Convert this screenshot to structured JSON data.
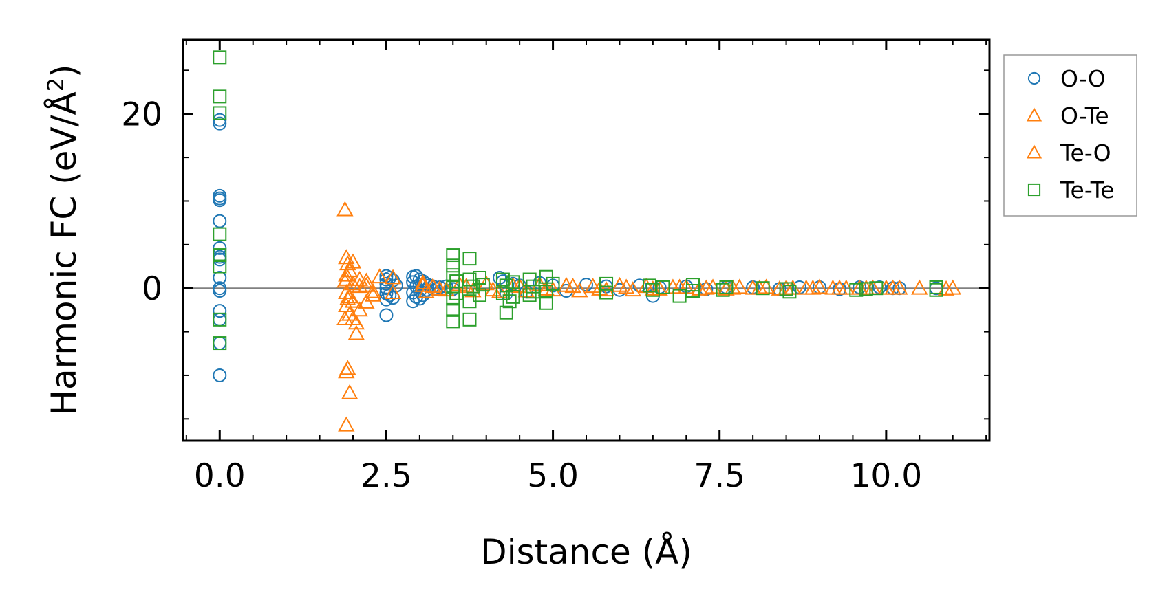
{
  "chart_data": {
    "type": "scatter",
    "title": "",
    "xlabel": "Distance (Å)",
    "ylabel": "Harmonic FC (eV/Å",
    "ylabel_superscript": "2",
    "ylabel_close": ")",
    "xlim": [
      -0.55,
      11.55
    ],
    "ylim": [
      -17.5,
      28.5
    ],
    "xticks": [
      0.0,
      2.5,
      5.0,
      7.5,
      10.0
    ],
    "xtick_labels": [
      "0.0",
      "2.5",
      "5.0",
      "7.5",
      "10.0"
    ],
    "yticks": [
      0,
      20
    ],
    "ytick_labels": [
      "0",
      "20"
    ],
    "x_minor_step": 0.5,
    "y_minor_step": 5,
    "zero_line": true,
    "legend_position": "outside-right-top",
    "series": [
      {
        "name": "O-O",
        "marker": "circle",
        "color": "#1f77b4",
        "points": [
          [
            0,
            19.3
          ],
          [
            0,
            18.9
          ],
          [
            0,
            10.6
          ],
          [
            0,
            10.3
          ],
          [
            0,
            10.1
          ],
          [
            0,
            7.7
          ],
          [
            0,
            4.6
          ],
          [
            0,
            3.6
          ],
          [
            0,
            3.3
          ],
          [
            0,
            1.2
          ],
          [
            0,
            0
          ],
          [
            0,
            -0.3
          ],
          [
            0,
            -2.6
          ],
          [
            0,
            -3.6
          ],
          [
            0,
            -6.3
          ],
          [
            0,
            -10
          ],
          [
            2.5,
            1.4
          ],
          [
            2.5,
            1.0
          ],
          [
            2.5,
            0.5
          ],
          [
            2.5,
            0
          ],
          [
            2.5,
            -0.6
          ],
          [
            2.5,
            -1.3
          ],
          [
            2.5,
            -3.1
          ],
          [
            2.55,
            1.2
          ],
          [
            2.55,
            -0.8
          ],
          [
            2.6,
            0.9
          ],
          [
            2.6,
            -1.1
          ],
          [
            2.65,
            0.3
          ],
          [
            2.9,
            1.3
          ],
          [
            2.9,
            0.7
          ],
          [
            2.9,
            -0.5
          ],
          [
            2.9,
            -1.5
          ],
          [
            2.95,
            1.4
          ],
          [
            2.95,
            0.2
          ],
          [
            2.95,
            -1.0
          ],
          [
            3.0,
            1.0
          ],
          [
            3.0,
            0.4
          ],
          [
            3.0,
            -0.3
          ],
          [
            3.0,
            -1.2
          ],
          [
            3.05,
            0.8
          ],
          [
            3.05,
            -0.8
          ],
          [
            3.1,
            0.5
          ],
          [
            3.1,
            -0.2
          ],
          [
            3.15,
            0.3
          ],
          [
            3.2,
            0.2
          ],
          [
            3.25,
            -0.1
          ],
          [
            3.3,
            0.1
          ],
          [
            3.4,
            0.2
          ],
          [
            3.5,
            -0.1
          ],
          [
            4.2,
            1.2
          ],
          [
            4.25,
            0.8
          ],
          [
            4.3,
            -0.6
          ],
          [
            4.4,
            0.5
          ],
          [
            4.5,
            0.3
          ],
          [
            4.6,
            -0.4
          ],
          [
            4.8,
            0.6
          ],
          [
            5.0,
            0.3
          ],
          [
            5.2,
            -0.3
          ],
          [
            5.5,
            0.4
          ],
          [
            5.8,
            0.2
          ],
          [
            6.0,
            -0.2
          ],
          [
            6.3,
            0.3
          ],
          [
            6.5,
            -0.9
          ],
          [
            6.6,
            0.1
          ],
          [
            7.0,
            0.2
          ],
          [
            7.3,
            -0.1
          ],
          [
            7.6,
            0.1
          ],
          [
            8.0,
            0.1
          ],
          [
            8.4,
            -0.1
          ],
          [
            8.7,
            0.1
          ],
          [
            9.0,
            0.1
          ],
          [
            9.3,
            -0.1
          ],
          [
            9.6,
            0.1
          ],
          [
            9.9,
            0.1
          ],
          [
            10.1,
            0
          ],
          [
            10.2,
            0
          ],
          [
            10.75,
            0
          ]
        ]
      },
      {
        "name": "O-Te",
        "marker": "triangle",
        "color": "#ff7f0e",
        "points": [
          [
            1.88,
            9.0
          ],
          [
            1.9,
            3.5
          ],
          [
            1.92,
            2.8
          ],
          [
            1.9,
            1.5
          ],
          [
            1.88,
            0.8
          ],
          [
            1.9,
            -0.5
          ],
          [
            1.92,
            -1.2
          ],
          [
            1.9,
            -2.0
          ],
          [
            1.88,
            -3.5
          ],
          [
            1.92,
            -9.2
          ],
          [
            1.9,
            -9.6
          ],
          [
            1.9,
            -15.7
          ],
          [
            1.95,
            -12.0
          ],
          [
            1.95,
            -3.0
          ],
          [
            1.95,
            2.0
          ],
          [
            2.0,
            0.5
          ],
          [
            2.0,
            -1.5
          ],
          [
            2.05,
            -5.2
          ],
          [
            2.05,
            -4.0
          ],
          [
            2.1,
            1.0
          ],
          [
            2.1,
            -2.5
          ],
          [
            2.2,
            0.3
          ],
          [
            2.3,
            -0.8
          ],
          [
            2.2,
            -1.6
          ],
          [
            2.4,
            1.3
          ],
          [
            3.05,
            0.6
          ],
          [
            3.1,
            -0.4
          ],
          [
            3.2,
            0.2
          ],
          [
            3.4,
            -0.2
          ],
          [
            3.6,
            0.4
          ],
          [
            3.8,
            -0.3
          ],
          [
            4.0,
            0.5
          ],
          [
            4.2,
            -0.4
          ],
          [
            4.4,
            0.3
          ],
          [
            4.6,
            -0.3
          ],
          [
            4.8,
            0.4
          ],
          [
            5.0,
            -0.2
          ],
          [
            5.2,
            0.3
          ],
          [
            5.4,
            -0.3
          ],
          [
            5.6,
            0.2
          ],
          [
            5.8,
            -0.2
          ],
          [
            6.0,
            0.3
          ],
          [
            6.2,
            -0.2
          ],
          [
            6.4,
            0.2
          ],
          [
            6.6,
            -0.1
          ],
          [
            6.8,
            0.1
          ],
          [
            7.0,
            0.1
          ],
          [
            7.2,
            -0.1
          ],
          [
            7.4,
            0.1
          ],
          [
            7.6,
            -0.1
          ],
          [
            7.8,
            0.1
          ],
          [
            8.0,
            0
          ],
          [
            8.2,
            0.1
          ],
          [
            8.4,
            -0.1
          ],
          [
            8.6,
            0
          ],
          [
            8.8,
            0
          ],
          [
            9.0,
            0.1
          ],
          [
            9.2,
            0
          ],
          [
            9.4,
            0
          ],
          [
            9.6,
            0
          ],
          [
            9.8,
            0
          ],
          [
            10.0,
            0
          ],
          [
            10.2,
            0
          ],
          [
            10.5,
            0
          ],
          [
            11.0,
            0
          ]
        ]
      },
      {
        "name": "Te-O",
        "marker": "triangle",
        "color": "#ff7f0e",
        "points": [
          [
            1.9,
            1.0
          ],
          [
            1.95,
            -1.0
          ],
          [
            2.0,
            3.0
          ],
          [
            2.0,
            -3.5
          ],
          [
            2.1,
            0.2
          ],
          [
            2.2,
            0.8
          ],
          [
            2.3,
            -0.4
          ],
          [
            2.6,
            1.2
          ],
          [
            2.6,
            -0.5
          ],
          [
            3.05,
            0.3
          ],
          [
            3.3,
            -0.1
          ],
          [
            3.7,
            0.2
          ],
          [
            4.1,
            -0.2
          ],
          [
            4.5,
            0.2
          ],
          [
            4.9,
            -0.1
          ],
          [
            5.3,
            0.2
          ],
          [
            5.7,
            -0.1
          ],
          [
            6.1,
            0.1
          ],
          [
            6.5,
            -0.1
          ],
          [
            6.9,
            0.1
          ],
          [
            7.3,
            0
          ],
          [
            7.7,
            0
          ],
          [
            8.1,
            0
          ],
          [
            8.5,
            0
          ],
          [
            8.9,
            0
          ],
          [
            9.3,
            0
          ],
          [
            9.7,
            0
          ],
          [
            10.1,
            0
          ],
          [
            10.9,
            -0.1
          ]
        ]
      },
      {
        "name": "Te-Te",
        "marker": "square",
        "color": "#2ca02c",
        "points": [
          [
            0,
            26.5
          ],
          [
            0,
            22.0
          ],
          [
            0,
            20.1
          ],
          [
            0,
            6.2
          ],
          [
            0,
            3.8
          ],
          [
            0,
            2.5
          ],
          [
            0,
            -3.6
          ],
          [
            0,
            -6.3
          ],
          [
            3.5,
            3.8
          ],
          [
            3.5,
            2.6
          ],
          [
            3.5,
            1.5
          ],
          [
            3.5,
            0.2
          ],
          [
            3.5,
            -1.2
          ],
          [
            3.5,
            -2.5
          ],
          [
            3.5,
            -3.8
          ],
          [
            3.55,
            0.8
          ],
          [
            3.55,
            -0.6
          ],
          [
            3.75,
            3.4
          ],
          [
            3.75,
            1.0
          ],
          [
            3.75,
            -1.5
          ],
          [
            3.75,
            -3.6
          ],
          [
            3.8,
            0.2
          ],
          [
            3.9,
            1.2
          ],
          [
            3.9,
            -0.8
          ],
          [
            3.95,
            0.4
          ],
          [
            4.25,
            1.0
          ],
          [
            4.25,
            -0.6
          ],
          [
            4.3,
            0.3
          ],
          [
            4.3,
            -2.8
          ],
          [
            4.35,
            -1.5
          ],
          [
            4.4,
            0.7
          ],
          [
            4.4,
            -1.0
          ],
          [
            4.65,
            1.0
          ],
          [
            4.65,
            -0.8
          ],
          [
            4.7,
            0.2
          ],
          [
            4.7,
            -0.4
          ],
          [
            4.9,
            1.3
          ],
          [
            4.9,
            -0.4
          ],
          [
            4.9,
            -1.7
          ],
          [
            5.0,
            0.5
          ],
          [
            5.8,
            0.5
          ],
          [
            5.8,
            -0.5
          ],
          [
            6.45,
            0.3
          ],
          [
            6.5,
            -0.2
          ],
          [
            6.65,
            0.1
          ],
          [
            6.9,
            -0.9
          ],
          [
            7.1,
            0.4
          ],
          [
            7.1,
            -0.3
          ],
          [
            7.55,
            -0.2
          ],
          [
            7.6,
            0.1
          ],
          [
            8.15,
            0
          ],
          [
            8.5,
            -0.1
          ],
          [
            8.55,
            -0.4
          ],
          [
            9.55,
            -0.2
          ],
          [
            9.7,
            -0.1
          ],
          [
            9.85,
            0
          ],
          [
            10.75,
            -0.2
          ],
          [
            10.75,
            0.1
          ]
        ]
      }
    ]
  }
}
